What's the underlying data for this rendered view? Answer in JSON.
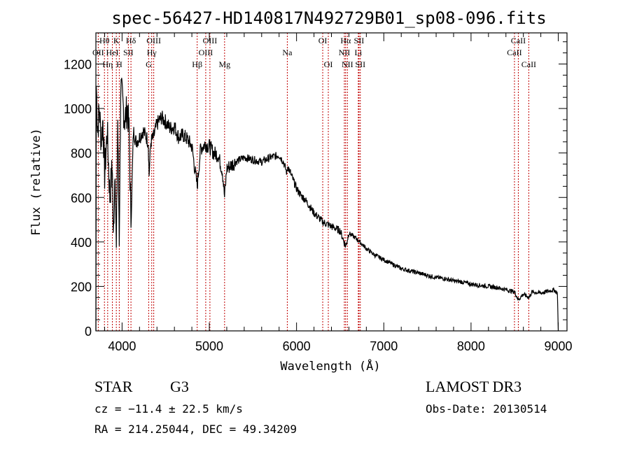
{
  "chart_data": {
    "type": "line",
    "title": "spec-56427-HD140817N492729B01_sp08-096.fits",
    "xlabel": "Wavelength (Å)",
    "ylabel": "Flux (relative)",
    "xlim": [
      3700,
      9100
    ],
    "ylim": [
      0,
      1340
    ],
    "xticks": [
      4000,
      5000,
      6000,
      7000,
      8000,
      9000
    ],
    "yticks": [
      0,
      200,
      400,
      600,
      800,
      1000,
      1200
    ],
    "xtick_labels": [
      "4000",
      "5000",
      "6000",
      "7000",
      "8000",
      "9000"
    ],
    "ytick_labels": [
      "0",
      "200",
      "400",
      "600",
      "800",
      "1000",
      "1200"
    ],
    "grid": false,
    "series": [
      {
        "name": "spectrum",
        "x": [
          3700,
          3705,
          3720,
          3740,
          3760,
          3780,
          3800,
          3830,
          3860,
          3889,
          3900,
          3920,
          3934,
          3950,
          3968,
          3985,
          4000,
          4030,
          4060,
          4080,
          4102,
          4130,
          4160,
          4200,
          4240,
          4280,
          4300,
          4310,
          4330,
          4360,
          4400,
          4450,
          4500,
          4550,
          4600,
          4650,
          4700,
          4750,
          4800,
          4861,
          4900,
          4950,
          5000,
          5050,
          5100,
          5150,
          5175,
          5200,
          5300,
          5400,
          5500,
          5600,
          5700,
          5800,
          5850,
          5889,
          5900,
          5950,
          6000,
          6050,
          6100,
          6200,
          6300,
          6400,
          6500,
          6563,
          6600,
          6700,
          6800,
          6900,
          7000,
          7100,
          7200,
          7300,
          7400,
          7500,
          7600,
          7700,
          7800,
          7900,
          8000,
          8100,
          8200,
          8300,
          8400,
          8500,
          8542,
          8600,
          8662,
          8700,
          8800,
          8900,
          8950,
          8990,
          9000
        ],
        "values": [
          0,
          1100,
          900,
          1000,
          850,
          950,
          700,
          900,
          600,
          750,
          400,
          750,
          350,
          950,
          420,
          1100,
          1050,
          950,
          1000,
          900,
          480,
          900,
          850,
          870,
          900,
          870,
          850,
          700,
          850,
          870,
          930,
          960,
          940,
          910,
          920,
          870,
          880,
          860,
          830,
          650,
          820,
          840,
          830,
          800,
          790,
          720,
          600,
          730,
          760,
          780,
          770,
          760,
          780,
          790,
          760,
          710,
          740,
          690,
          640,
          610,
          590,
          530,
          490,
          470,
          450,
          380,
          440,
          410,
          370,
          340,
          320,
          300,
          280,
          270,
          260,
          250,
          240,
          235,
          225,
          220,
          210,
          205,
          200,
          195,
          185,
          175,
          140,
          165,
          150,
          175,
          170,
          180,
          185,
          170,
          0
        ]
      }
    ],
    "lines": [
      {
        "name": "Hθ",
        "wl": 3798,
        "row": 0
      },
      {
        "name": "OII",
        "wl": 3727,
        "row": 1
      },
      {
        "name": "Hη",
        "wl": 3835,
        "row": 2
      },
      {
        "name": "HeI",
        "wl": 3889,
        "row": 1
      },
      {
        "name": "K",
        "wl": 3934,
        "row": 0
      },
      {
        "name": "SII",
        "wl": 4072,
        "row": 1
      },
      {
        "name": "H",
        "wl": 3968,
        "row": 2
      },
      {
        "name": "Hδ",
        "wl": 4102,
        "row": 0
      },
      {
        "name": "OIII",
        "wl": 4363,
        "row": 0
      },
      {
        "name": "Hγ",
        "wl": 4340,
        "row": 1
      },
      {
        "name": "G",
        "wl": 4305,
        "row": 2
      },
      {
        "name": "OIII",
        "wl": 5007,
        "row": 0
      },
      {
        "name": "OIII",
        "wl": 4959,
        "row": 1
      },
      {
        "name": "Hβ",
        "wl": 4861,
        "row": 2
      },
      {
        "name": "Mg",
        "wl": 5175,
        "row": 2
      },
      {
        "name": "Na",
        "wl": 5894,
        "row": 1
      },
      {
        "name": "OI",
        "wl": 6300,
        "row": 0
      },
      {
        "name": "OI",
        "wl": 6364,
        "row": 2
      },
      {
        "name": "Hα",
        "wl": 6563,
        "row": 0
      },
      {
        "name": "NII",
        "wl": 6548,
        "row": 1
      },
      {
        "name": "NII",
        "wl": 6583,
        "row": 2
      },
      {
        "name": "SII",
        "wl": 6716,
        "row": 0
      },
      {
        "name": "Li",
        "wl": 6708,
        "row": 1
      },
      {
        "name": "SII",
        "wl": 6731,
        "row": 2
      },
      {
        "name": "CaII",
        "wl": 8542,
        "row": 0
      },
      {
        "name": "CaII",
        "wl": 8498,
        "row": 1
      },
      {
        "name": "CaII",
        "wl": 8662,
        "row": 2
      }
    ]
  },
  "info": {
    "class_label": "STAR",
    "subclass": "G3",
    "cz_text": "cz = −11.4 ± 22.5 km/s",
    "radec_text": "RA = 214.25044, DEC =  49.34209",
    "survey": "LAMOST DR3",
    "obs_date": "Obs-Date: 20130514"
  },
  "colors": {
    "line_marker": "#c00000",
    "spectrum": "#000000",
    "axes": "#000000"
  }
}
